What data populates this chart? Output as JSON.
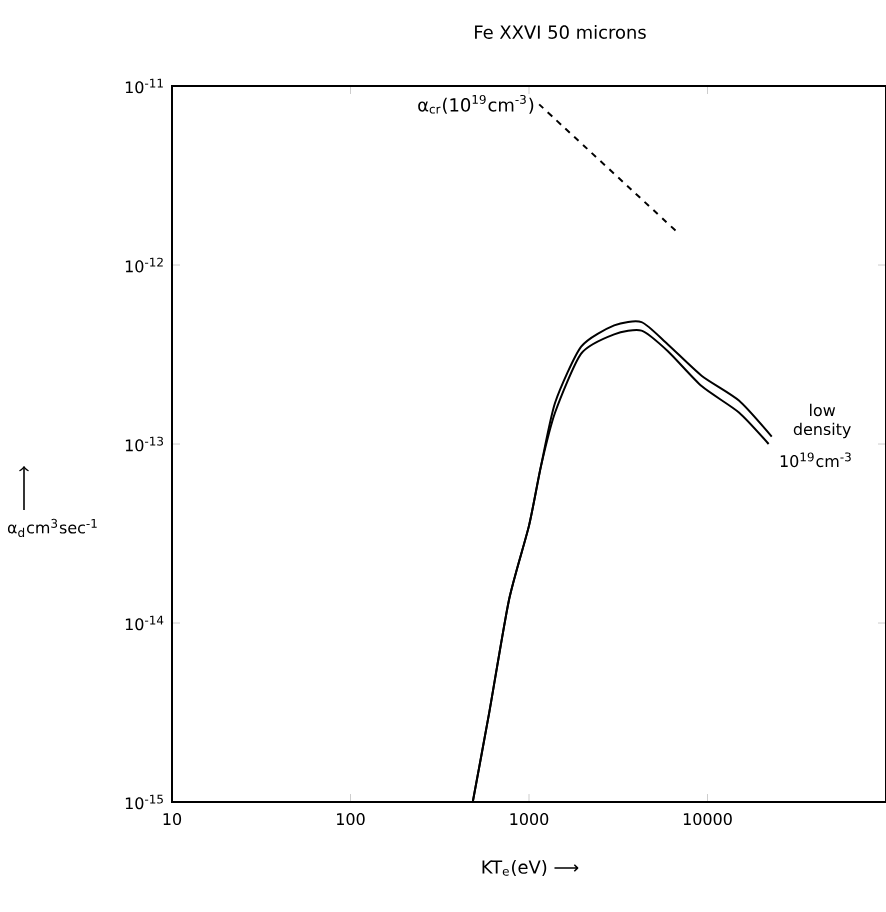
{
  "chart_data": {
    "type": "line",
    "title": "Fe XXVI 50 microns",
    "xlabel": "KT$_{e}$(eV) ⟶",
    "ylabel": "α$_{d}$cm$^{3}$sec$^{-1}$",
    "log": "xy",
    "xlim": [
      10,
      100000
    ],
    "ylim": [
      1e-15,
      1e-11
    ],
    "xticks": [
      10,
      100,
      1000,
      10000
    ],
    "yticks": [
      {
        "value": 1e-15,
        "label": "10$^{-15}$"
      },
      {
        "value": 1e-14,
        "label": "10$^{-14}$"
      },
      {
        "value": 1e-13,
        "label": "10$^{-13}$"
      },
      {
        "value": 1e-12,
        "label": "10$^{-12}$"
      },
      {
        "value": 1e-11,
        "label": "10$^{-11}$"
      }
    ],
    "grid": false,
    "legend": false,
    "marker": "none",
    "series": [
      {
        "name": "α$_{cr}$(10$^{19}$cm$^{-3}$)",
        "color": "#000000",
        "line_style": "dashed",
        "x": [
          1140,
          6900
        ],
        "values": [
          7.9e-12,
          1.5e-12
        ]
      },
      {
        "name": "low density",
        "color": "#000000",
        "line_style": "solid",
        "x": [
          484,
          600,
          773,
          1000,
          1166,
          1400,
          1960,
          3000,
          4270,
          6000,
          9300,
          15000,
          22900
        ],
        "values": [
          1e-15,
          3.2e-15,
          1.35e-14,
          3.5e-14,
          7.5e-14,
          1.7e-13,
          3.5e-13,
          4.6e-13,
          4.8e-13,
          3.6e-13,
          2.4e-13,
          1.75e-13,
          1.1e-13
        ]
      },
      {
        "name": "10$^{19}$cm$^{-3}$",
        "color": "#000000",
        "line_style": "solid",
        "x": [
          484,
          600,
          773,
          1000,
          1166,
          1400,
          1960,
          3000,
          4270,
          6000,
          9300,
          15000,
          22000
        ],
        "values": [
          1e-15,
          3.2e-15,
          1.35e-14,
          3.5e-14,
          7.5e-14,
          1.5e-13,
          3.2e-13,
          4.1e-13,
          4.3e-13,
          3.3e-13,
          2.1e-13,
          1.5e-13,
          1e-13
        ]
      }
    ]
  }
}
